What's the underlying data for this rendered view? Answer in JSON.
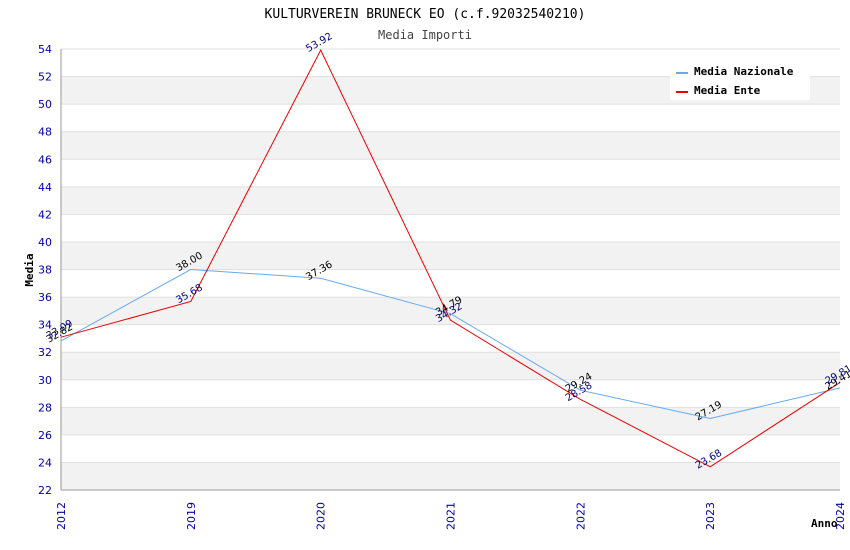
{
  "chart_data": {
    "type": "line",
    "title": "KULTURVEREIN BRUNECK EO (c.f.92032540210)",
    "subtitle": "Media Importi",
    "xlabel": "Anno",
    "ylabel": "Media",
    "categories": [
      "2012",
      "2019",
      "2020",
      "2021",
      "2022",
      "2023",
      "2024"
    ],
    "ylim": [
      22,
      54
    ],
    "ystep": 2,
    "yticks": [
      "22",
      "24",
      "26",
      "28",
      "30",
      "32",
      "34",
      "36",
      "38",
      "40",
      "42",
      "44",
      "46",
      "48",
      "50",
      "52",
      "54"
    ],
    "series": [
      {
        "name": "Media Nazionale",
        "color": "#66aaee",
        "label_color": "#000000",
        "values": [
          32.82,
          38.0,
          37.36,
          34.79,
          29.24,
          27.19,
          29.41
        ],
        "labels": [
          "32.82",
          "38.00",
          "37.36",
          "34.79",
          "29.24",
          "27.19",
          "29.41"
        ]
      },
      {
        "name": "Media Ente",
        "color": "#ee0000",
        "label_color": "#000080",
        "values": [
          33.09,
          35.68,
          53.92,
          34.32,
          28.58,
          23.68,
          29.81
        ],
        "labels": [
          "33.09",
          "35.68",
          "53.92",
          "34.32",
          "28.58",
          "23.68",
          "29.81"
        ]
      }
    ],
    "grid": true,
    "legend_position": "top-right"
  }
}
